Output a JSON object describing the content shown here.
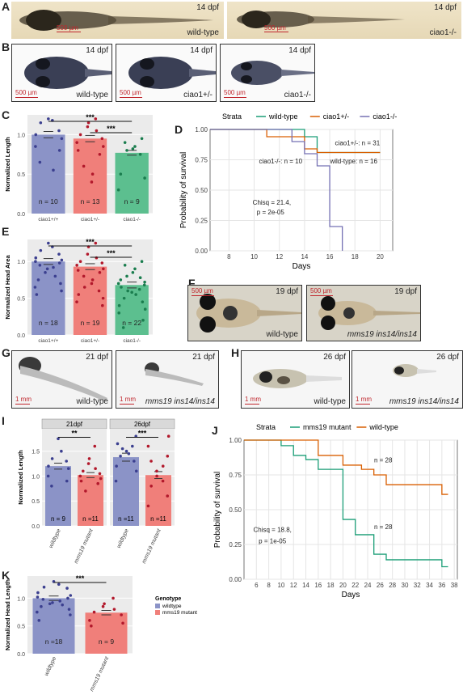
{
  "panels": {
    "A": {
      "letter": "A",
      "left": {
        "age": "14 dpf",
        "scale": "500 µm",
        "genotype": "wild-type"
      },
      "right": {
        "age": "14 dpf",
        "scale": "500 µm",
        "genotype": "ciao1-/-"
      }
    },
    "B": {
      "letter": "B",
      "images": [
        {
          "age": "14 dpf",
          "scale": "500 µm",
          "genotype": "wild-type"
        },
        {
          "age": "14 dpf",
          "scale": "500 µm",
          "genotype": "ciao1+/-"
        },
        {
          "age": "14 dpf",
          "scale": "500 µm",
          "genotype": "ciao1-/-"
        }
      ]
    },
    "F": {
      "letter": "F",
      "images": [
        {
          "age": "19 dpf",
          "scale": "500 µm",
          "genotype": "wild-type"
        },
        {
          "age": "19 dpf",
          "scale": "500 µm",
          "genotype": "mms19 ins14/ins14"
        }
      ]
    },
    "G": {
      "letter": "G",
      "images": [
        {
          "age": "21 dpf",
          "scale": "1 mm",
          "genotype": "wild-type"
        },
        {
          "age": "21 dpf",
          "scale": "1 mm",
          "genotype": "mms19 ins14/ins14"
        }
      ]
    },
    "H": {
      "letter": "H",
      "images": [
        {
          "age": "26 dpf",
          "scale": "1 mm",
          "genotype": "wild-type"
        },
        {
          "age": "26 dpf",
          "scale": "1 mm",
          "genotype": "mms19 ins14/ins14"
        }
      ]
    }
  },
  "chart_data": [
    {
      "panel": "C",
      "type": "bar",
      "ylabel": "Normalized Length",
      "categories": [
        "ciao1+/+",
        "ciao1+/-",
        "ciao1-/-"
      ],
      "values": [
        1.0,
        0.95,
        0.77
      ],
      "errors": [
        0.04,
        0.04,
        0.03
      ],
      "n_labels": [
        "n = 10",
        "n = 13",
        "n = 9"
      ],
      "colors": [
        "#8b93c7",
        "#f07f7a",
        "#5cbf8f"
      ],
      "dot_colors": [
        "#3b3f8f",
        "#b2182b",
        "#1a7d4e"
      ],
      "ylim": [
        0,
        1.25
      ],
      "yticks": [
        "0.0",
        "0.5",
        "1.0"
      ],
      "ytick_values": [
        0,
        0.5,
        1.0
      ],
      "significance": [
        {
          "from": 0,
          "to": 2,
          "label": "***"
        },
        {
          "from": 1,
          "to": 2,
          "label": "***"
        }
      ],
      "points": [
        [
          1.2,
          1.18,
          1.15,
          1.05,
          1.0,
          0.95,
          0.85,
          0.8,
          0.65,
          0.55
        ],
        [
          1.2,
          1.15,
          1.1,
          1.05,
          1.0,
          0.95,
          0.9,
          0.85,
          0.8,
          0.75,
          0.6,
          0.5,
          0.4
        ],
        [
          0.95,
          0.9,
          0.85,
          0.82,
          0.8,
          0.75,
          0.5,
          0.45,
          0.3
        ]
      ]
    },
    {
      "panel": "D",
      "type": "line",
      "xlabel": "Days",
      "ylabel": "Probability of survival",
      "legend_title": "Strata",
      "legend_position": "top",
      "xlim": [
        6.5,
        21
      ],
      "ylim": [
        0,
        1
      ],
      "xticks": [
        8,
        10,
        12,
        14,
        16,
        18,
        20
      ],
      "yticks": [
        "0.00",
        "0.25",
        "0.50",
        "0.75",
        "1.00"
      ],
      "ytick_values": [
        0,
        0.25,
        0.5,
        0.75,
        1.0
      ],
      "series": [
        {
          "name": "wild-type",
          "color": "#1b9e77",
          "steps": [
            [
              6.5,
              1.0
            ],
            [
              14,
              1.0
            ],
            [
              14,
              0.94
            ],
            [
              15,
              0.94
            ],
            [
              15,
              0.81
            ],
            [
              20,
              0.81
            ]
          ]
        },
        {
          "name": "ciao1+/-",
          "color": "#d95f02",
          "steps": [
            [
              6.5,
              1.0
            ],
            [
              11,
              1.0
            ],
            [
              11,
              0.94
            ],
            [
              14,
              0.94
            ],
            [
              14,
              0.84
            ],
            [
              15,
              0.84
            ],
            [
              15,
              0.81
            ],
            [
              20,
              0.81
            ]
          ]
        },
        {
          "name": "ciao1-/-",
          "color": "#7570b3",
          "steps": [
            [
              6.5,
              1.0
            ],
            [
              13,
              1.0
            ],
            [
              13,
              0.9
            ],
            [
              14,
              0.9
            ],
            [
              14,
              0.8
            ],
            [
              15,
              0.8
            ],
            [
              15,
              0.7
            ],
            [
              16,
              0.7
            ],
            [
              16,
              0.2
            ],
            [
              17,
              0.2
            ],
            [
              17,
              0.0
            ]
          ]
        }
      ],
      "annotations": [
        {
          "text": "ciao1+/-: n = 31",
          "x": 18.2,
          "y": 0.87
        },
        {
          "text": "ciao1-/-: n = 10",
          "x": 12.1,
          "y": 0.72
        },
        {
          "text": "wild-type: n = 16",
          "x": 17.9,
          "y": 0.72
        },
        {
          "text": "Chisq = 21.4,",
          "x": 11.4,
          "y": 0.38
        },
        {
          "text": "p = 2e-05",
          "x": 11.3,
          "y": 0.3
        }
      ]
    },
    {
      "panel": "E",
      "type": "bar",
      "ylabel": "Normalized Head Area",
      "categories": [
        "ciao1+/+",
        "ciao1+/-",
        "ciao1-/-"
      ],
      "values": [
        1.0,
        0.93,
        0.68
      ],
      "errors": [
        0.04,
        0.04,
        0.04
      ],
      "n_labels": [
        "n = 18",
        "n = 19",
        "n = 22"
      ],
      "colors": [
        "#8b93c7",
        "#f07f7a",
        "#5cbf8f"
      ],
      "dot_colors": [
        "#3b3f8f",
        "#b2182b",
        "#1a7d4e"
      ],
      "ylim": [
        0,
        1.3
      ],
      "yticks": [
        "0.0",
        "0.5",
        "1.0"
      ],
      "ytick_values": [
        0,
        0.5,
        1.0
      ],
      "significance": [
        {
          "from": 0,
          "to": 2,
          "label": "***"
        },
        {
          "from": 1,
          "to": 2,
          "label": "***"
        }
      ],
      "points": [
        [
          1.25,
          1.2,
          1.15,
          1.1,
          1.05,
          1.02,
          1.0,
          0.98,
          0.95,
          0.92,
          0.9,
          0.85,
          0.8,
          0.75,
          0.7,
          0.65,
          0.6,
          0.55
        ],
        [
          1.25,
          1.2,
          1.1,
          1.05,
          1.0,
          0.98,
          0.95,
          0.9,
          0.88,
          0.85,
          0.8,
          0.75,
          0.7,
          0.65,
          0.6,
          0.55,
          0.5,
          0.45,
          0.4
        ],
        [
          1.0,
          0.95,
          0.9,
          0.85,
          0.8,
          0.78,
          0.75,
          0.72,
          0.7,
          0.68,
          0.65,
          0.62,
          0.6,
          0.58,
          0.55,
          0.5,
          0.45,
          0.4,
          0.35,
          0.3,
          0.2,
          0.1
        ]
      ]
    },
    {
      "panel": "I",
      "type": "bar",
      "ylabel": "Normalized Length",
      "facets": [
        "21dpf",
        "26dpf"
      ],
      "categories": [
        "wildtype",
        "mms19 mutant"
      ],
      "values": [
        [
          1.2,
          1.02
        ],
        [
          1.38,
          1.02
        ]
      ],
      "errors": [
        [
          0.06,
          0.05
        ],
        [
          0.08,
          0.07
        ]
      ],
      "n_labels": [
        [
          "n = 9",
          "n =11"
        ],
        [
          "n =11",
          "n =11"
        ]
      ],
      "colors": [
        "#8b93c7",
        "#f07f7a"
      ],
      "dot_colors": [
        "#3b3f8f",
        "#b2182b"
      ],
      "ylim": [
        0,
        1.95
      ],
      "yticks": [
        "0.0",
        "0.5",
        "1.0",
        "1.5"
      ],
      "ytick_values": [
        0,
        0.5,
        1.0,
        1.5
      ],
      "significance": [
        {
          "facet": 0,
          "label": "**"
        },
        {
          "facet": 1,
          "label": "***"
        }
      ],
      "points": [
        [
          [
            1.75,
            1.5,
            1.35,
            1.3,
            1.2,
            1.15,
            1.0,
            0.9,
            0.8
          ],
          [
            1.6,
            1.35,
            1.25,
            1.15,
            1.1,
            1.05,
            1.0,
            0.95,
            0.9,
            0.85,
            0.7
          ]
        ],
        [
          [
            1.8,
            1.65,
            1.6,
            1.55,
            1.5,
            1.45,
            1.4,
            1.3,
            1.2,
            1.1,
            0.9
          ],
          [
            1.8,
            1.6,
            1.4,
            1.3,
            1.2,
            1.1,
            1.0,
            0.9,
            0.8,
            0.6,
            0.4
          ]
        ]
      ]
    },
    {
      "panel": "J",
      "type": "line",
      "xlabel": "Days",
      "ylabel": "Probability of survival",
      "legend_title": "Strata",
      "legend_position": "top",
      "xlim": [
        4,
        38.5
      ],
      "ylim": [
        0,
        1
      ],
      "xticks": [
        6,
        8,
        10,
        12,
        14,
        16,
        18,
        20,
        22,
        24,
        26,
        28,
        30,
        32,
        34,
        36,
        38
      ],
      "yticks": [
        "0.00",
        "0.25",
        "0.50",
        "0.75",
        "1.00"
      ],
      "ytick_values": [
        0,
        0.25,
        0.5,
        0.75,
        1.0
      ],
      "series": [
        {
          "name": "mms19 mutant",
          "color": "#1b9e77",
          "steps": [
            [
              4,
              1.0
            ],
            [
              10,
              1.0
            ],
            [
              10,
              0.96
            ],
            [
              12,
              0.96
            ],
            [
              12,
              0.89
            ],
            [
              14,
              0.89
            ],
            [
              14,
              0.86
            ],
            [
              16,
              0.86
            ],
            [
              16,
              0.79
            ],
            [
              20,
              0.79
            ],
            [
              20,
              0.43
            ],
            [
              22,
              0.43
            ],
            [
              22,
              0.32
            ],
            [
              25,
              0.32
            ],
            [
              25,
              0.18
            ],
            [
              27,
              0.18
            ],
            [
              27,
              0.14
            ],
            [
              36,
              0.14
            ],
            [
              36,
              0.09
            ],
            [
              37,
              0.09
            ]
          ]
        },
        {
          "name": "wild-type",
          "color": "#d95f02",
          "steps": [
            [
              4,
              1.0
            ],
            [
              16,
              1.0
            ],
            [
              16,
              0.89
            ],
            [
              20,
              0.89
            ],
            [
              20,
              0.82
            ],
            [
              23,
              0.82
            ],
            [
              23,
              0.79
            ],
            [
              25,
              0.79
            ],
            [
              25,
              0.75
            ],
            [
              27,
              0.75
            ],
            [
              27,
              0.68
            ],
            [
              36,
              0.68
            ],
            [
              36,
              0.61
            ],
            [
              37,
              0.61
            ]
          ]
        }
      ],
      "annotations": [
        {
          "text": "n = 28",
          "x": 26.5,
          "y": 0.84
        },
        {
          "text": "n = 28",
          "x": 26.5,
          "y": 0.36
        },
        {
          "text": "Chisq = 18.8,",
          "x": 8.6,
          "y": 0.34
        },
        {
          "text": "p = 1e-05",
          "x": 8.6,
          "y": 0.26
        }
      ]
    },
    {
      "panel": "K",
      "type": "bar",
      "ylabel": "Normalized Head Length",
      "categories": [
        "wildtype",
        "mms19 mutant"
      ],
      "values": [
        1.0,
        0.74
      ],
      "errors": [
        0.04,
        0.04
      ],
      "n_labels": [
        "n =18",
        "n = 9"
      ],
      "colors": [
        "#8b93c7",
        "#f07f7a"
      ],
      "dot_colors": [
        "#3b3f8f",
        "#b2182b"
      ],
      "ylim": [
        0,
        1.4
      ],
      "yticks": [
        "0.0",
        "0.5",
        "1.0"
      ],
      "ytick_values": [
        0,
        0.5,
        1.0
      ],
      "significance": [
        {
          "from": 0,
          "to": 1,
          "label": "***"
        }
      ],
      "legend": {
        "title": "Genotype",
        "items": [
          "wildtype",
          "mms19 mutant"
        ]
      },
      "points": [
        [
          1.3,
          1.25,
          1.2,
          1.18,
          1.1,
          1.05,
          1.02,
          1.0,
          0.98,
          0.95,
          0.92,
          0.9,
          0.88,
          0.85,
          0.8,
          0.75,
          0.7,
          0.6
        ],
        [
          1.0,
          0.9,
          0.85,
          0.8,
          0.75,
          0.7,
          0.6,
          0.55,
          0.5
        ]
      ]
    }
  ]
}
